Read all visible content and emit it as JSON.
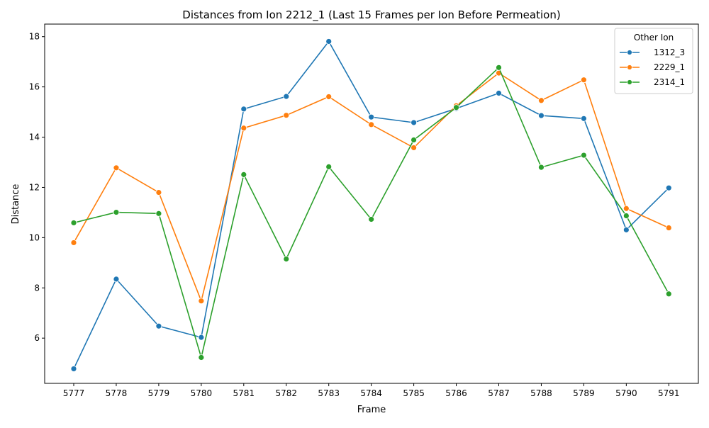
{
  "chart_data": {
    "type": "line",
    "title": "Distances from Ion 2212_1 (Last 15 Frames per Ion Before Permeation)",
    "xlabel": "Frame",
    "ylabel": "Distance",
    "categories": [
      "5777",
      "5778",
      "5779",
      "5780",
      "5781",
      "5782",
      "5783",
      "5784",
      "5785",
      "5786",
      "5787",
      "5788",
      "5789",
      "5790",
      "5791"
    ],
    "ylim": [
      4.2,
      18.5
    ],
    "yticks": [
      6,
      8,
      10,
      12,
      14,
      16,
      18
    ],
    "grid": false,
    "legend": {
      "title": "Other Ion",
      "placement": "top-right"
    },
    "series": [
      {
        "name": "1312_3",
        "color": "#1f77b4",
        "values": [
          4.78,
          8.35,
          6.48,
          6.03,
          15.12,
          15.62,
          17.81,
          14.8,
          14.58,
          15.14,
          15.75,
          14.86,
          14.74,
          10.31,
          11.98
        ]
      },
      {
        "name": "2229_1",
        "color": "#ff7f0e",
        "values": [
          9.8,
          12.78,
          11.8,
          7.48,
          14.36,
          14.87,
          15.61,
          14.5,
          13.58,
          15.25,
          16.55,
          15.46,
          16.28,
          11.16,
          10.39
        ]
      },
      {
        "name": "2314_1",
        "color": "#2ca02c",
        "values": [
          10.59,
          11.01,
          10.96,
          5.23,
          12.51,
          9.15,
          12.82,
          10.73,
          13.89,
          15.18,
          16.77,
          12.8,
          13.28,
          10.87,
          7.76
        ]
      }
    ]
  }
}
